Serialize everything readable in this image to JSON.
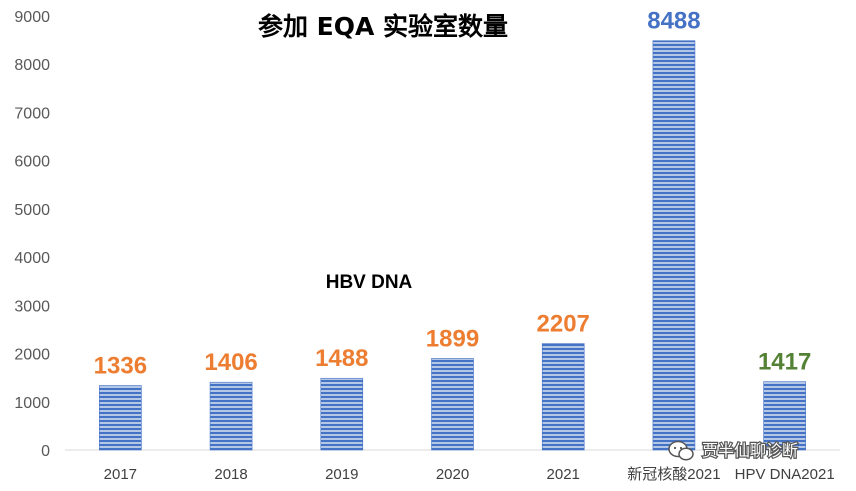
{
  "chart_data": {
    "type": "bar",
    "title": "参加 EQA 实验室数量",
    "categories": [
      "2017",
      "2018",
      "2019",
      "2020",
      "2021",
      "新冠核酸2021",
      "HPV DNA2021"
    ],
    "values": [
      1336,
      1406,
      1488,
      1899,
      2207,
      8488,
      1417
    ],
    "data_labels": [
      "1336",
      "1406",
      "1488",
      "1899",
      "2207",
      "8488",
      "1417"
    ],
    "label_colors": [
      "#ED7D31",
      "#ED7D31",
      "#ED7D31",
      "#ED7D31",
      "#ED7D31",
      "#4472C4",
      "#548235"
    ],
    "bar_color": "#4472C4",
    "bar_fill": "horizontal-stripes",
    "ylim": [
      0,
      9000
    ],
    "yticks": [
      "0",
      "1000",
      "2000",
      "3000",
      "4000",
      "5000",
      "6000",
      "7000",
      "8000",
      "9000"
    ],
    "ytick_values": [
      0,
      1000,
      2000,
      3000,
      4000,
      5000,
      6000,
      7000,
      8000,
      9000
    ],
    "grid": false,
    "legend": "none",
    "annotation": "HBV DNA"
  },
  "watermark": "贾半仙聊诊断"
}
